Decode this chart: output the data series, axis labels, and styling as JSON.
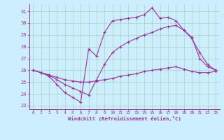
{
  "xlabel": "Windchill (Refroidissement éolien,°C)",
  "background_color": "#cceeff",
  "grid_color": "#aaccbb",
  "line_color": "#993399",
  "xlim": [
    -0.5,
    23.5
  ],
  "ylim": [
    22.7,
    31.6
  ],
  "yticks": [
    23,
    24,
    25,
    26,
    27,
    28,
    29,
    30,
    31
  ],
  "xticks": [
    0,
    1,
    2,
    3,
    4,
    5,
    6,
    7,
    8,
    9,
    10,
    11,
    12,
    13,
    14,
    15,
    16,
    17,
    18,
    19,
    20,
    21,
    22,
    23
  ],
  "series": [
    {
      "x": [
        0,
        1,
        2,
        3,
        4,
        5,
        6,
        7,
        8,
        9,
        10,
        11,
        12,
        13,
        14,
        15,
        16,
        17,
        18,
        19,
        20,
        21,
        22,
        23
      ],
      "y": [
        26.0,
        25.8,
        25.6,
        25.4,
        25.2,
        25.1,
        25.0,
        25.0,
        25.1,
        25.2,
        25.3,
        25.5,
        25.6,
        25.7,
        25.9,
        26.0,
        26.1,
        26.2,
        26.3,
        26.1,
        25.9,
        25.8,
        25.8,
        25.9
      ]
    },
    {
      "x": [
        0,
        1,
        2,
        3,
        4,
        5,
        6,
        7,
        8,
        9,
        10,
        11,
        12,
        13,
        14,
        15,
        16,
        17,
        18,
        19,
        20,
        21,
        22,
        23
      ],
      "y": [
        26.0,
        25.8,
        25.6,
        25.2,
        24.8,
        24.5,
        24.2,
        23.9,
        25.2,
        26.5,
        27.5,
        28.0,
        28.4,
        28.7,
        29.0,
        29.2,
        29.5,
        29.7,
        29.8,
        29.4,
        28.7,
        27.5,
        26.5,
        26.0
      ]
    },
    {
      "x": [
        0,
        1,
        2,
        3,
        4,
        5,
        6,
        7,
        8,
        9,
        10,
        11,
        12,
        13,
        14,
        15,
        16,
        17,
        18,
        19,
        20,
        21,
        22,
        23
      ],
      "y": [
        26.0,
        25.8,
        25.5,
        24.8,
        24.1,
        23.7,
        23.3,
        27.8,
        27.2,
        29.2,
        30.2,
        30.3,
        30.4,
        30.5,
        30.7,
        31.3,
        30.4,
        30.5,
        30.2,
        29.4,
        28.8,
        27.0,
        26.3,
        26.0
      ]
    }
  ]
}
